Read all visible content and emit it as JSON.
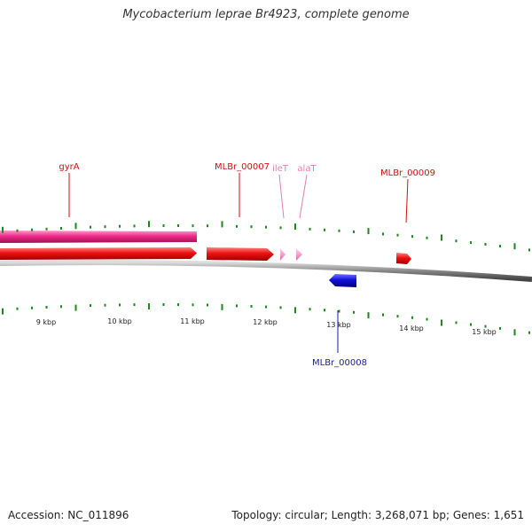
{
  "title": "Mycobacterium leprae Br4923, complete genome",
  "footer": {
    "accession_text": "Accession: NC_011896",
    "stats_text": "Topology: circular; Length: 3,268,071 bp; Genes: 1,651"
  },
  "colors": {
    "tick": "#1a8a1a",
    "backbone": "#888888",
    "forward_cds": "#ee1111",
    "reverse_cds": "#1111dd",
    "trna": "#f4a0c8",
    "gene_band": "#ee2a8a",
    "label_forward": "#cc1111",
    "label_trna": "#e97bb0",
    "label_reverse": "#1a1aaa"
  },
  "scale": {
    "unit": "kbp",
    "labels": [
      "9 kbp",
      "10 kbp",
      "11 kbp",
      "12 kbp",
      "13 kbp",
      "14 kbp",
      "15 kbp"
    ]
  },
  "features": [
    {
      "name": "gyrA",
      "kind": "cds",
      "strand": "+",
      "start_kbp": 7.2,
      "end_kbp": 11.0,
      "label": "gyrA"
    },
    {
      "name": "MLBr_00007",
      "kind": "cds",
      "strand": "+",
      "start_kbp": 11.2,
      "end_kbp": 12.1,
      "label": "MLBr_00007"
    },
    {
      "name": "ileT",
      "kind": "trna",
      "strand": "+",
      "start_kbp": 12.25,
      "end_kbp": 12.33,
      "label": "ileT"
    },
    {
      "name": "alaT",
      "kind": "trna",
      "strand": "+",
      "start_kbp": 12.45,
      "end_kbp": 12.53,
      "label": "alaT"
    },
    {
      "name": "MLBr_00009",
      "kind": "cds",
      "strand": "+",
      "start_kbp": 13.85,
      "end_kbp": 14.05,
      "label": "MLBr_00009"
    },
    {
      "name": "MLBr_00008",
      "kind": "cds",
      "strand": "-",
      "start_kbp": 12.9,
      "end_kbp": 13.25,
      "label": "MLBr_00008"
    }
  ]
}
